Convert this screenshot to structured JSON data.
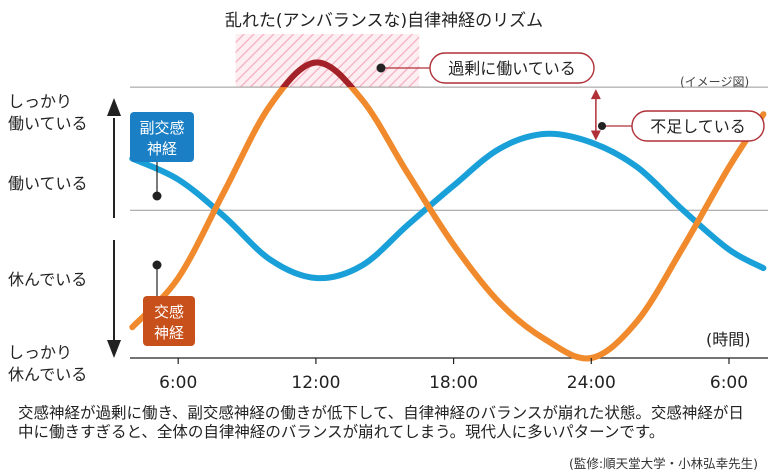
{
  "title": "乱れた(アンバランスな)自律神経のリズム",
  "image_note": "(イメージ図)",
  "time_unit": "(時間)",
  "y_labels": {
    "top_line1": "しっかり",
    "top_line2": "働いている",
    "upper": "働いている",
    "lower": "休んでいる",
    "bottom_line1": "しっかり",
    "bottom_line2": "休んでいる"
  },
  "series_labels": {
    "parasympathetic_line1": "副交感",
    "parasympathetic_line2": "神経",
    "sympathetic_line1": "交感",
    "sympathetic_line2": "神経"
  },
  "callouts": {
    "excess": "過剰に働いている",
    "deficit": "不足している"
  },
  "caption": "交感神経が過剰に働き、副交感神経の働きが低下して、自律神経のバランスが崩れた状態。交感神経が日中に働きすぎると、全体の自律神経のバランスが崩れてしまう。現代人に多いパターンです。",
  "credit": "(監修:順天堂大学・小林弘幸先生)",
  "colors": {
    "sympathetic": "#f08a2c",
    "sympathetic_excess": "#a3222a",
    "parasympathetic": "#1aa0d8",
    "para_label_bg": "#1a7fc4",
    "symp_label_bg": "#c8501a",
    "hatch": "#f4aec0",
    "callout_border": "#b03038"
  },
  "chart_data": {
    "type": "line",
    "x_ticks": [
      "6:00",
      "12:00",
      "18:00",
      "24:00",
      "6:00"
    ],
    "x_tick_hours": [
      6,
      12,
      18,
      24,
      30
    ],
    "xlim": [
      3.9,
      31.7
    ],
    "ylim": [
      -1.2,
      1.35
    ],
    "y_levels": {
      "しっかり働いている": 1.0,
      "働いている": 0.5,
      "休んでいる": -0.5,
      "しっかり休んでいる": -1.0
    },
    "series": [
      {
        "name": "交感神経",
        "color": "#f08a2c",
        "x": [
          4,
          6,
          8,
          10,
          12,
          14,
          16,
          18,
          20,
          22,
          24,
          26,
          28,
          30,
          31.5
        ],
        "y": [
          -0.95,
          -0.55,
          0.15,
          0.85,
          1.2,
          0.9,
          0.3,
          -0.28,
          -0.75,
          -1.05,
          -1.2,
          -0.9,
          -0.3,
          0.35,
          0.78
        ]
      },
      {
        "name": "副交感神経",
        "color": "#1aa0d8",
        "x": [
          4,
          6,
          8,
          10,
          12,
          14,
          16,
          18,
          20,
          22,
          24,
          26,
          28,
          30,
          31.5
        ],
        "y": [
          0.42,
          0.25,
          -0.05,
          -0.4,
          -0.55,
          -0.45,
          -0.12,
          0.2,
          0.5,
          0.62,
          0.55,
          0.35,
          0.0,
          -0.32,
          -0.47
        ]
      }
    ],
    "highlight_x_range": [
      8.5,
      16.5
    ],
    "excess_threshold": 1.0,
    "deficit_arrow": {
      "x": 24.2,
      "from": 1.0,
      "to": 0.55
    },
    "reference_lines": [
      1.0,
      0.0
    ]
  }
}
